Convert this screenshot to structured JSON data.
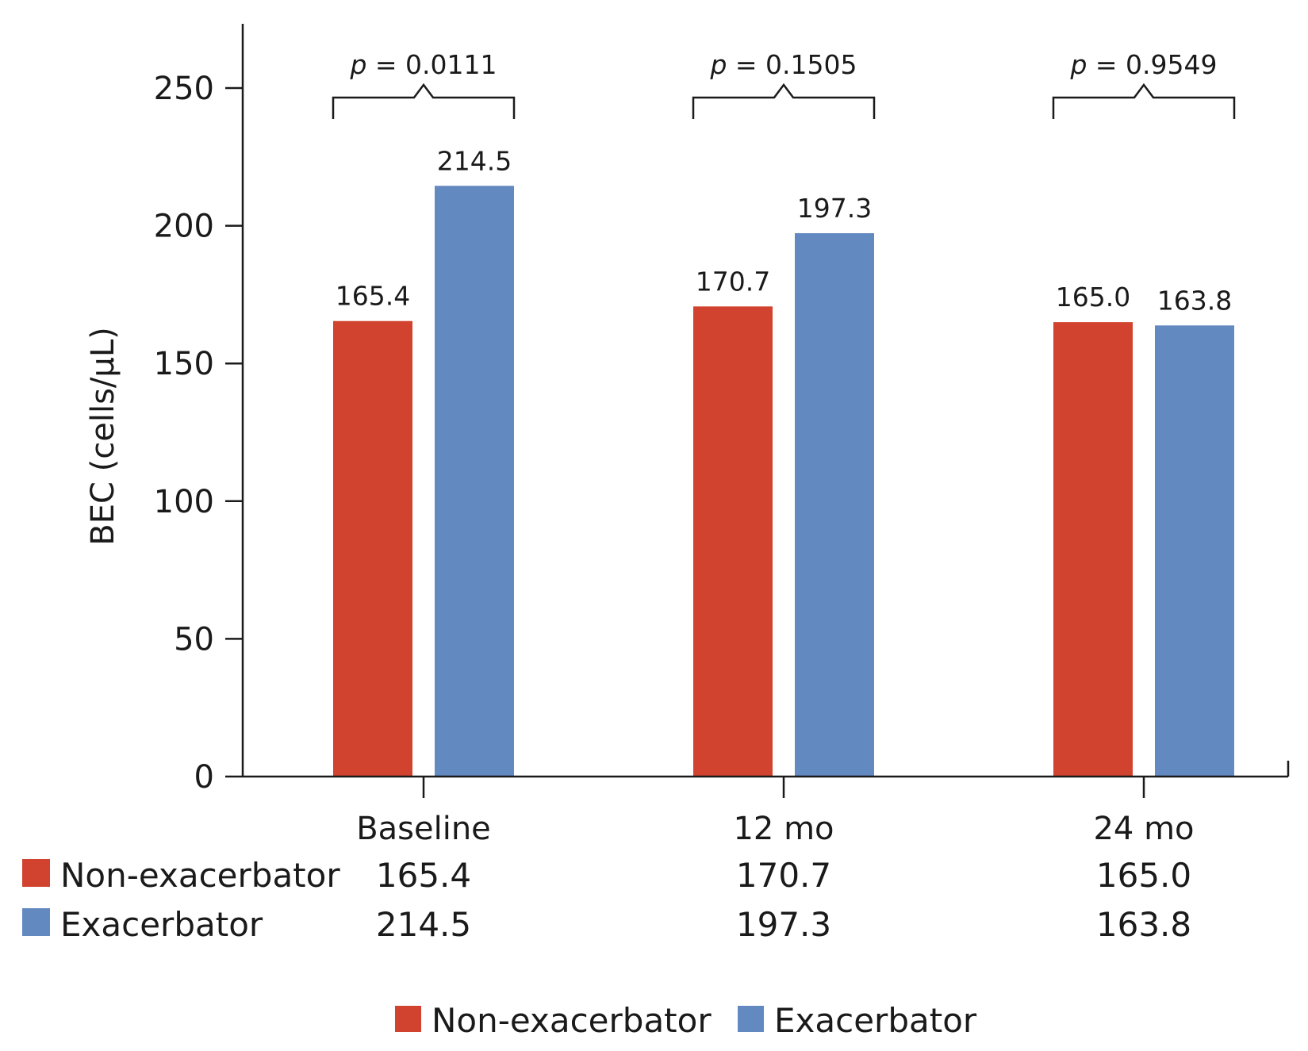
{
  "colors": {
    "non_exacerbator": "#d1432f",
    "exacerbator": "#6389c1"
  },
  "chart_data": {
    "type": "bar",
    "title": "",
    "xlabel": "",
    "ylabel": "BEC (cells/μL)",
    "ylim": [
      0,
      275
    ],
    "yticks": [
      0,
      50,
      100,
      150,
      200,
      250
    ],
    "categories": [
      "Baseline",
      "12 mo",
      "24 mo"
    ],
    "series": [
      {
        "name": "Non-exacerbator",
        "values": [
          165.4,
          170.7,
          165.0
        ],
        "labels": [
          "165.4",
          "170.7",
          "165.0"
        ]
      },
      {
        "name": "Exacerbator",
        "values": [
          214.5,
          197.3,
          163.8
        ],
        "labels": [
          "214.5",
          "197.3",
          "163.8"
        ]
      }
    ],
    "annotations": [
      {
        "category": "Baseline",
        "p_symbol": "p",
        "p_text": " = 0.0111"
      },
      {
        "category": "12 mo",
        "p_symbol": "p",
        "p_text": " = 0.1505"
      },
      {
        "category": "24 mo",
        "p_symbol": "p",
        "p_text": " = 0.9549"
      }
    ],
    "legend": {
      "placement": "bottom-center",
      "items": [
        "Non-exacerbator",
        "Exacerbator"
      ]
    },
    "grid": false
  },
  "data_table": {
    "rows": [
      {
        "label": "Non-exacerbator",
        "values": [
          "165.4",
          "170.7",
          "165.0"
        ]
      },
      {
        "label": "Exacerbator",
        "values": [
          "214.5",
          "197.3",
          "163.8"
        ]
      }
    ]
  }
}
